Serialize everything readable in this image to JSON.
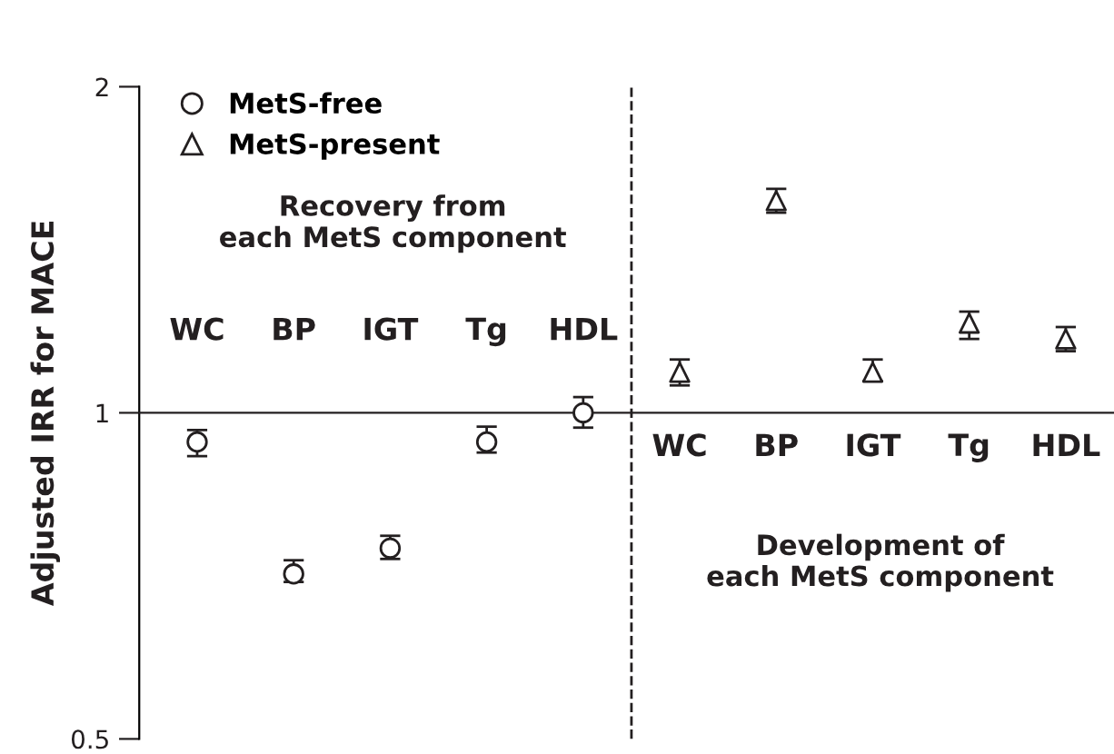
{
  "chart_data": {
    "type": "scatter",
    "ylabel": "Adjusted IRR for MACE",
    "categories": [
      "WC",
      "BP",
      "IGT",
      "Tg",
      "HDL",
      "WC",
      "BP",
      "IGT",
      "Tg",
      "HDL"
    ],
    "series": [
      {
        "name": "MetS-free",
        "color": "#231f20",
        "marker": "circle",
        "values": [
          0.94,
          0.71,
          0.75,
          0.94,
          1.0,
          null,
          null,
          null,
          null,
          null
        ],
        "errors": [
          [
            0.912,
            0.964
          ],
          [
            0.698,
            0.731
          ],
          [
            0.733,
            0.77
          ],
          [
            0.919,
            0.971
          ],
          [
            0.969,
            1.034
          ],
          null,
          null,
          null,
          null,
          null
        ]
      },
      {
        "name": "MetS-present",
        "color": "#231f20",
        "marker": "triangle",
        "values": [
          null,
          null,
          null,
          null,
          null,
          1.09,
          1.57,
          1.09,
          1.21,
          1.17
        ],
        "errors": [
          null,
          null,
          null,
          null,
          null,
          [
            1.06,
            1.12
          ],
          [
            1.53,
            1.61
          ],
          [
            1.07,
            1.12
          ],
          [
            1.17,
            1.24
          ],
          [
            1.14,
            1.2
          ]
        ]
      }
    ],
    "log": "y",
    "ylim": [
      0.5,
      2
    ],
    "yticks": [
      0.5,
      1,
      2
    ],
    "annotations": [
      "Recovery from\neach MetS component",
      "Development of\neach MetS component"
    ],
    "legend": "top left",
    "grid": false
  }
}
